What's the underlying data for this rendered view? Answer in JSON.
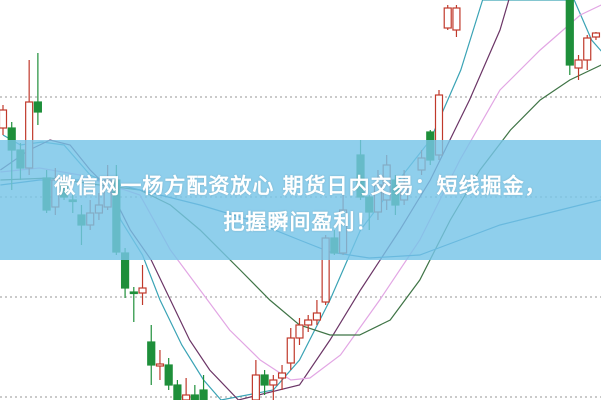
{
  "banner": {
    "line1": "微信网一杨方配资放心 期货日内交易：短线掘金，",
    "line2": "把握瞬间盈利！",
    "background": "#76c4e8",
    "text_color": "#ffffff"
  },
  "chart_data": {
    "type": "candlestick",
    "title": "",
    "xlabel": "",
    "ylabel": "",
    "ylim": [
      0,
      400
    ],
    "grid": "horizontal-dotted",
    "gridlines": [
      3,
      103,
      203,
      303
    ],
    "colors": {
      "up": "#c0392b",
      "down": "#1e8f3a",
      "grid": "#aaaaaa"
    },
    "candles": [
      {
        "i": 0,
        "o": 272,
        "h": 295,
        "l": 265,
        "c": 290
      },
      {
        "i": 1,
        "o": 272,
        "h": 278,
        "l": 210,
        "c": 250
      },
      {
        "i": 2,
        "o": 250,
        "h": 257,
        "l": 220,
        "c": 232
      },
      {
        "i": 3,
        "o": 232,
        "h": 340,
        "l": 225,
        "c": 298
      },
      {
        "i": 4,
        "o": 298,
        "h": 347,
        "l": 275,
        "c": 288
      },
      {
        "i": 5,
        "o": 222,
        "h": 230,
        "l": 187,
        "c": 190
      },
      {
        "i": 6,
        "o": 193,
        "h": 232,
        "l": 185,
        "c": 220
      },
      {
        "i": 7,
        "o": 215,
        "h": 225,
        "l": 200,
        "c": 203
      },
      {
        "i": 8,
        "o": 200,
        "h": 205,
        "l": 187,
        "c": 199
      },
      {
        "i": 9,
        "o": 185,
        "h": 195,
        "l": 155,
        "c": 175
      },
      {
        "i": 10,
        "o": 175,
        "h": 200,
        "l": 170,
        "c": 187
      },
      {
        "i": 11,
        "o": 187,
        "h": 207,
        "l": 180,
        "c": 195
      },
      {
        "i": 12,
        "o": 193,
        "h": 235,
        "l": 190,
        "c": 220
      },
      {
        "i": 13,
        "o": 220,
        "h": 235,
        "l": 145,
        "c": 148
      },
      {
        "i": 14,
        "o": 147,
        "h": 152,
        "l": 102,
        "c": 112
      },
      {
        "i": 15,
        "o": 108,
        "h": 113,
        "l": 78,
        "c": 107
      },
      {
        "i": 16,
        "o": 107,
        "h": 135,
        "l": 95,
        "c": 112
      },
      {
        "i": 17,
        "o": 58,
        "h": 75,
        "l": 15,
        "c": 35
      },
      {
        "i": 18,
        "o": 34,
        "h": 50,
        "l": 20,
        "c": 36
      },
      {
        "i": 19,
        "o": 35,
        "h": 42,
        "l": 10,
        "c": 15
      },
      {
        "i": 20,
        "o": 15,
        "h": 20,
        "l": 0,
        "c": 0
      },
      {
        "i": 21,
        "o": 0,
        "h": 22,
        "l": 0,
        "c": 5
      },
      {
        "i": 22,
        "o": 5,
        "h": 15,
        "l": 0,
        "c": 0
      },
      {
        "i": 23,
        "o": 10,
        "h": 25,
        "l": 0,
        "c": 0
      },
      {
        "i": 29,
        "o": 0,
        "h": 40,
        "l": 0,
        "c": 25
      },
      {
        "i": 30,
        "o": 25,
        "h": 30,
        "l": 5,
        "c": 15
      },
      {
        "i": 31,
        "o": 15,
        "h": 25,
        "l": 0,
        "c": 20
      },
      {
        "i": 32,
        "o": 22,
        "h": 35,
        "l": 10,
        "c": 27
      },
      {
        "i": 33,
        "o": 37,
        "h": 72,
        "l": 30,
        "c": 62
      },
      {
        "i": 34,
        "o": 62,
        "h": 82,
        "l": 55,
        "c": 75
      },
      {
        "i": 35,
        "o": 75,
        "h": 85,
        "l": 68,
        "c": 80
      },
      {
        "i": 36,
        "o": 80,
        "h": 100,
        "l": 75,
        "c": 87
      },
      {
        "i": 37,
        "o": 98,
        "h": 165,
        "l": 95,
        "c": 162
      },
      {
        "i": 38,
        "o": 162,
        "h": 170,
        "l": 145,
        "c": 147
      },
      {
        "i": 39,
        "o": 147,
        "h": 205,
        "l": 145,
        "c": 190
      },
      {
        "i": 41,
        "o": 245,
        "h": 260,
        "l": 200,
        "c": 203
      },
      {
        "i": 42,
        "o": 203,
        "h": 205,
        "l": 170,
        "c": 188
      },
      {
        "i": 43,
        "o": 188,
        "h": 230,
        "l": 180,
        "c": 215
      },
      {
        "i": 44,
        "o": 200,
        "h": 245,
        "l": 190,
        "c": 235
      },
      {
        "i": 45,
        "o": 220,
        "h": 225,
        "l": 185,
        "c": 195
      },
      {
        "i": 46,
        "o": 200,
        "h": 230,
        "l": 195,
        "c": 215
      },
      {
        "i": 48,
        "o": 230,
        "h": 250,
        "l": 225,
        "c": 242
      },
      {
        "i": 49,
        "o": 268,
        "h": 270,
        "l": 235,
        "c": 240
      },
      {
        "i": 50,
        "o": 245,
        "h": 310,
        "l": 240,
        "c": 305
      },
      {
        "i": 51,
        "o": 372,
        "h": 395,
        "l": 370,
        "c": 392
      },
      {
        "i": 52,
        "o": 370,
        "h": 395,
        "l": 363,
        "c": 392
      },
      {
        "i": 65,
        "o": 400,
        "h": 400,
        "l": 325,
        "c": 335
      },
      {
        "i": 66,
        "o": 332,
        "h": 345,
        "l": 320,
        "c": 340
      },
      {
        "i": 67,
        "o": 340,
        "h": 365,
        "l": 330,
        "c": 362
      },
      {
        "i": 68,
        "o": 363,
        "h": 368,
        "l": 360,
        "c": 367
      }
    ],
    "moving_averages": [
      {
        "color": "#3aa3b5",
        "points": [
          [
            0,
            265
          ],
          [
            2,
            255
          ],
          [
            4.5,
            258
          ],
          [
            7,
            255
          ],
          [
            10,
            225
          ],
          [
            12.5,
            215
          ],
          [
            13.5,
            180
          ],
          [
            16,
            145
          ],
          [
            18,
            100
          ],
          [
            20.5,
            55
          ],
          [
            23,
            20
          ],
          [
            25,
            0
          ],
          [
            31,
            10
          ],
          [
            34,
            40
          ],
          [
            37.5,
            100
          ],
          [
            41,
            170
          ],
          [
            44.5,
            210
          ],
          [
            49,
            260
          ],
          [
            52.5,
            330
          ],
          [
            55,
            400
          ],
          [
            65.5,
            400
          ],
          [
            67.5,
            360
          ],
          [
            69,
            345
          ]
        ]
      },
      {
        "color": "#6b3566",
        "points": [
          [
            -0.3,
            230
          ],
          [
            3,
            250
          ],
          [
            5.4,
            260
          ],
          [
            7.7,
            255
          ],
          [
            10,
            230
          ],
          [
            12.3,
            210
          ],
          [
            14.6,
            170
          ],
          [
            17,
            140
          ],
          [
            19.2,
            100
          ],
          [
            21.4,
            60
          ],
          [
            23.7,
            30
          ],
          [
            27,
            0
          ],
          [
            34,
            15
          ],
          [
            37.5,
            60
          ],
          [
            41,
            110
          ],
          [
            45.5,
            170
          ],
          [
            49,
            220
          ],
          [
            53.5,
            300
          ],
          [
            57,
            370
          ],
          [
            58,
            400
          ]
        ]
      },
      {
        "color": "#e2a6e4",
        "points": [
          [
            -0.3,
            228
          ],
          [
            4.2,
            232
          ],
          [
            8.8,
            225
          ],
          [
            12.3,
            215
          ],
          [
            15.7,
            205
          ],
          [
            19.2,
            150
          ],
          [
            22.6,
            110
          ],
          [
            26,
            70
          ],
          [
            29.5,
            40
          ],
          [
            33,
            20
          ],
          [
            35.2,
            22
          ],
          [
            38.7,
            45
          ],
          [
            43.2,
            100
          ],
          [
            47.8,
            160
          ],
          [
            52.4,
            240
          ],
          [
            57,
            310
          ],
          [
            61.6,
            350
          ],
          [
            66.2,
            385
          ],
          [
            68.6,
            395
          ]
        ]
      },
      {
        "color": "#3f7446",
        "points": [
          [
            -0.3,
            220
          ],
          [
            5.4,
            222
          ],
          [
            11.1,
            215
          ],
          [
            15.7,
            210
          ],
          [
            19.2,
            195
          ],
          [
            22.6,
            170
          ],
          [
            27.2,
            130
          ],
          [
            30.6,
            100
          ],
          [
            34,
            75
          ],
          [
            37.5,
            65
          ],
          [
            40.9,
            65
          ],
          [
            44.4,
            80
          ],
          [
            47.8,
            120
          ],
          [
            51.3,
            180
          ],
          [
            54.7,
            230
          ],
          [
            58.2,
            270
          ],
          [
            61.6,
            300
          ],
          [
            65,
            320
          ],
          [
            68.6,
            335
          ]
        ]
      },
      {
        "color": "#2f86b3",
        "points": [
          [
            -0.3,
            215
          ],
          [
            4.2,
            220
          ],
          [
            11.1,
            220
          ],
          [
            15.7,
            210
          ],
          [
            22.6,
            195
          ],
          [
            28.3,
            180
          ],
          [
            34,
            160
          ],
          [
            37.5,
            148
          ],
          [
            42,
            142
          ],
          [
            47.8,
            145
          ],
          [
            52.4,
            160
          ],
          [
            57,
            175
          ],
          [
            61.6,
            185
          ],
          [
            66.2,
            195
          ],
          [
            68.6,
            200
          ]
        ]
      }
    ]
  }
}
